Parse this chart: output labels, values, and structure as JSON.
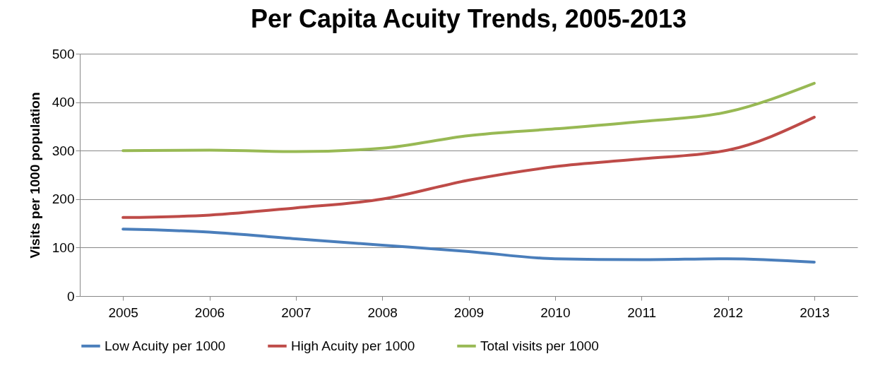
{
  "chart_data": {
    "type": "line",
    "title": "Per Capita Acuity Trends, 2005-2013",
    "ylabel": "Visits per 1000 population",
    "categories": [
      "2005",
      "2006",
      "2007",
      "2008",
      "2009",
      "2010",
      "2011",
      "2012",
      "2013"
    ],
    "series": [
      {
        "name": "Low Acuity per 1000",
        "color": "#4a7ebb",
        "values": [
          138,
          132,
          118,
          105,
          92,
          77,
          75,
          77,
          70
        ]
      },
      {
        "name": "High Acuity per 1000",
        "color": "#be4b48",
        "values": [
          162,
          167,
          182,
          200,
          239,
          267,
          283,
          301,
          369
        ]
      },
      {
        "name": "Total visits per 1000",
        "color": "#98b954",
        "values": [
          300,
          301,
          298,
          305,
          331,
          345,
          360,
          380,
          439
        ]
      }
    ],
    "ylim": [
      0,
      500
    ],
    "yticks": [
      0,
      100,
      200,
      300,
      400,
      500
    ],
    "grid": "y",
    "legend": "bottom",
    "marker": "none",
    "line_style": "solid"
  }
}
